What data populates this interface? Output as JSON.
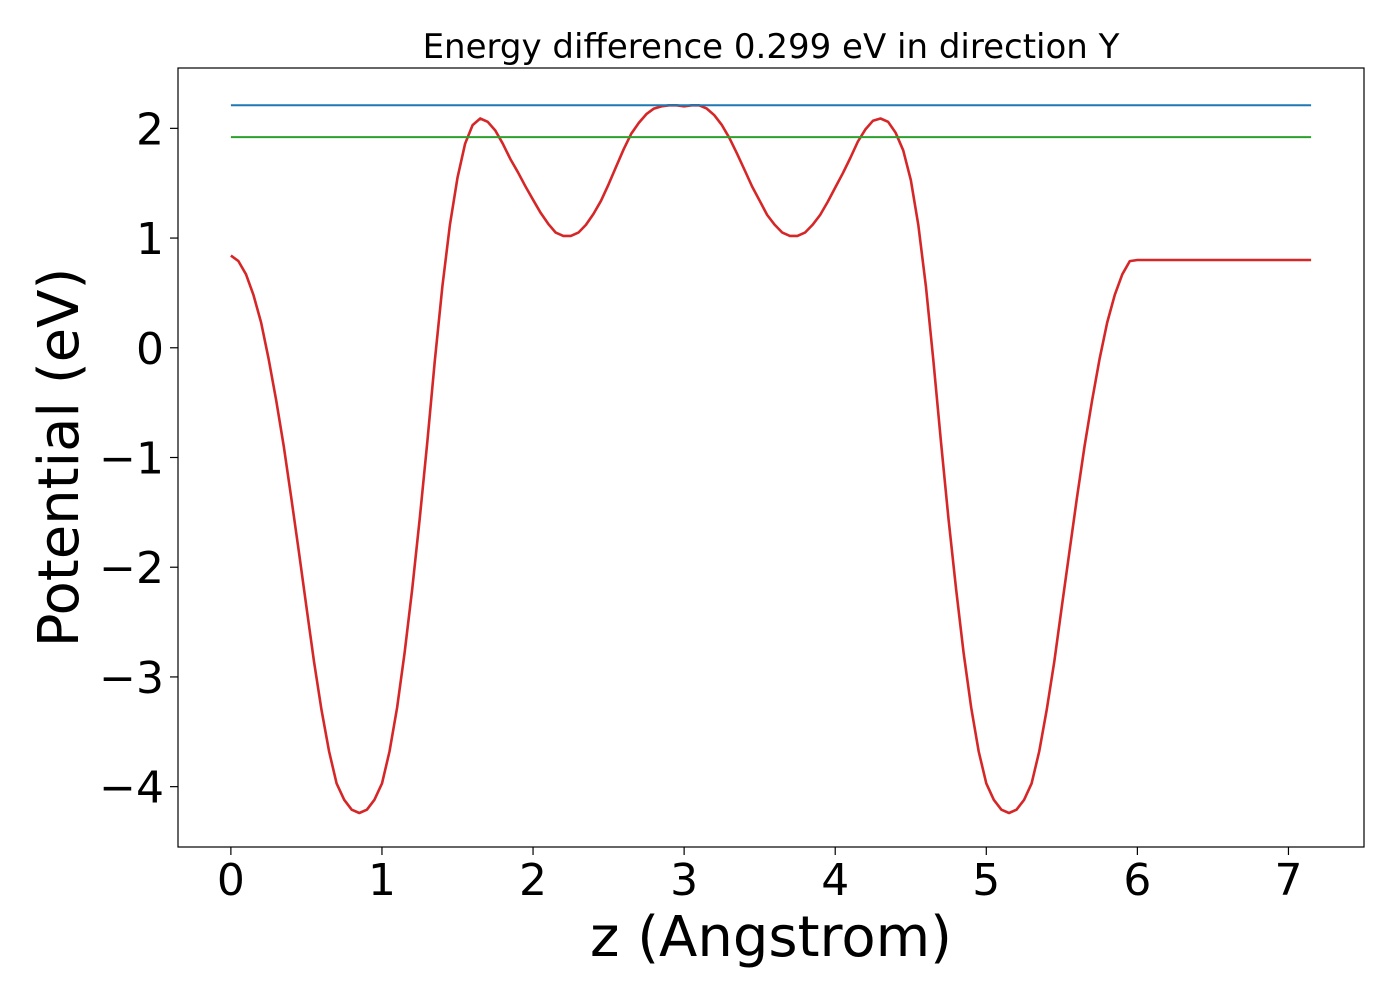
{
  "chart_data": {
    "type": "line",
    "title": "Energy difference 0.299 eV in direction Y",
    "xlabel": "z (Angstrom)",
    "ylabel": "Potential (eV)",
    "xlim": [
      -0.35,
      7.5
    ],
    "ylim": [
      -4.55,
      2.55
    ],
    "xticks": [
      0,
      1,
      2,
      3,
      4,
      5,
      6,
      7
    ],
    "xtick_labels": [
      "0",
      "1",
      "2",
      "3",
      "4",
      "5",
      "6",
      "7"
    ],
    "yticks": [
      -4,
      -3,
      -2,
      -1,
      0,
      1,
      2
    ],
    "ytick_labels": [
      "−4",
      "−3",
      "−2",
      "−1",
      "0",
      "1",
      "2"
    ],
    "grid": false,
    "series": [
      {
        "color": "#d62728",
        "x": [
          0,
          0.05,
          0.1,
          0.15,
          0.2,
          0.25,
          0.3,
          0.35,
          0.4,
          0.45,
          0.5,
          0.55,
          0.6,
          0.65,
          0.7,
          0.75,
          0.8,
          0.85,
          0.9,
          0.95,
          1.0,
          1.05,
          1.1,
          1.15,
          1.2,
          1.25,
          1.3,
          1.35,
          1.4,
          1.45,
          1.5,
          1.55,
          1.6,
          1.65,
          1.7,
          1.75,
          1.8,
          1.85,
          1.9,
          1.95,
          2.0,
          2.05,
          2.1,
          2.15,
          2.2,
          2.25,
          2.3,
          2.35,
          2.4,
          2.45,
          2.5,
          2.55,
          2.6,
          2.65,
          2.7,
          2.75,
          2.8,
          2.85,
          2.9,
          2.95,
          3.0,
          3.05,
          3.1,
          3.15,
          3.2,
          3.25,
          3.3,
          3.35,
          3.4,
          3.45,
          3.5,
          3.55,
          3.6,
          3.65,
          3.7,
          3.75,
          3.8,
          3.85,
          3.9,
          3.95,
          4.0,
          4.05,
          4.1,
          4.15,
          4.2,
          4.25,
          4.3,
          4.35,
          4.4,
          4.45,
          4.5,
          4.55,
          4.6,
          4.65,
          4.7,
          4.75,
          4.8,
          4.85,
          4.9,
          4.95,
          5.0,
          5.05,
          5.1,
          5.15,
          5.2,
          5.25,
          5.3,
          5.35,
          5.4,
          5.45,
          5.5,
          5.55,
          5.6,
          5.65,
          5.7,
          5.75,
          5.8,
          5.85,
          5.9,
          5.95,
          6.0,
          6.05,
          6.1,
          6.15,
          6.2,
          6.25,
          6.3,
          6.35,
          6.4,
          6.45,
          6.5,
          6.55,
          6.6,
          6.65,
          6.7,
          6.75,
          6.8,
          6.85,
          6.9,
          6.95,
          7.0,
          7.05,
          7.1,
          7.15
        ],
        "values": [
          0.84,
          0.79,
          0.67,
          0.48,
          0.23,
          -0.1,
          -0.48,
          -0.9,
          -1.37,
          -1.86,
          -2.36,
          -2.86,
          -3.3,
          -3.68,
          -3.97,
          -4.12,
          -4.21,
          -4.24,
          -4.21,
          -4.12,
          -3.97,
          -3.68,
          -3.28,
          -2.78,
          -2.2,
          -1.56,
          -0.86,
          -0.12,
          0.56,
          1.12,
          1.55,
          1.86,
          2.03,
          2.09,
          2.06,
          1.98,
          1.86,
          1.72,
          1.6,
          1.47,
          1.35,
          1.23,
          1.13,
          1.05,
          1.02,
          1.02,
          1.05,
          1.12,
          1.22,
          1.34,
          1.49,
          1.65,
          1.81,
          1.95,
          2.05,
          2.13,
          2.18,
          2.2,
          2.21,
          2.21,
          2.2,
          2.21,
          2.21,
          2.18,
          2.12,
          2.03,
          1.91,
          1.77,
          1.62,
          1.47,
          1.34,
          1.21,
          1.12,
          1.05,
          1.02,
          1.02,
          1.05,
          1.12,
          1.21,
          1.33,
          1.46,
          1.59,
          1.73,
          1.88,
          1.99,
          2.07,
          2.09,
          2.06,
          1.96,
          1.8,
          1.53,
          1.12,
          0.56,
          -0.12,
          -0.86,
          -1.56,
          -2.2,
          -2.78,
          -3.28,
          -3.68,
          -3.97,
          -4.12,
          -4.21,
          -4.24,
          -4.21,
          -4.12,
          -3.97,
          -3.68,
          -3.3,
          -2.86,
          -2.36,
          -1.86,
          -1.37,
          -0.9,
          -0.48,
          -0.1,
          0.23,
          0.48,
          0.67,
          0.79,
          0.8,
          0.8,
          0.8,
          0.8,
          0.8,
          0.8,
          0.8,
          0.8,
          0.8,
          0.8,
          0.8,
          0.8,
          0.8,
          0.8,
          0.8,
          0.8,
          0.8,
          0.8,
          0.8,
          0.8,
          0.8,
          0.8,
          0.8,
          0.8
        ]
      },
      {
        "color": "#1f77b4",
        "x": [
          0,
          7.15
        ],
        "values": [
          2.21,
          2.21
        ]
      },
      {
        "color": "#2ca02c",
        "x": [
          0,
          7.15
        ],
        "values": [
          1.92,
          1.92
        ]
      }
    ]
  }
}
